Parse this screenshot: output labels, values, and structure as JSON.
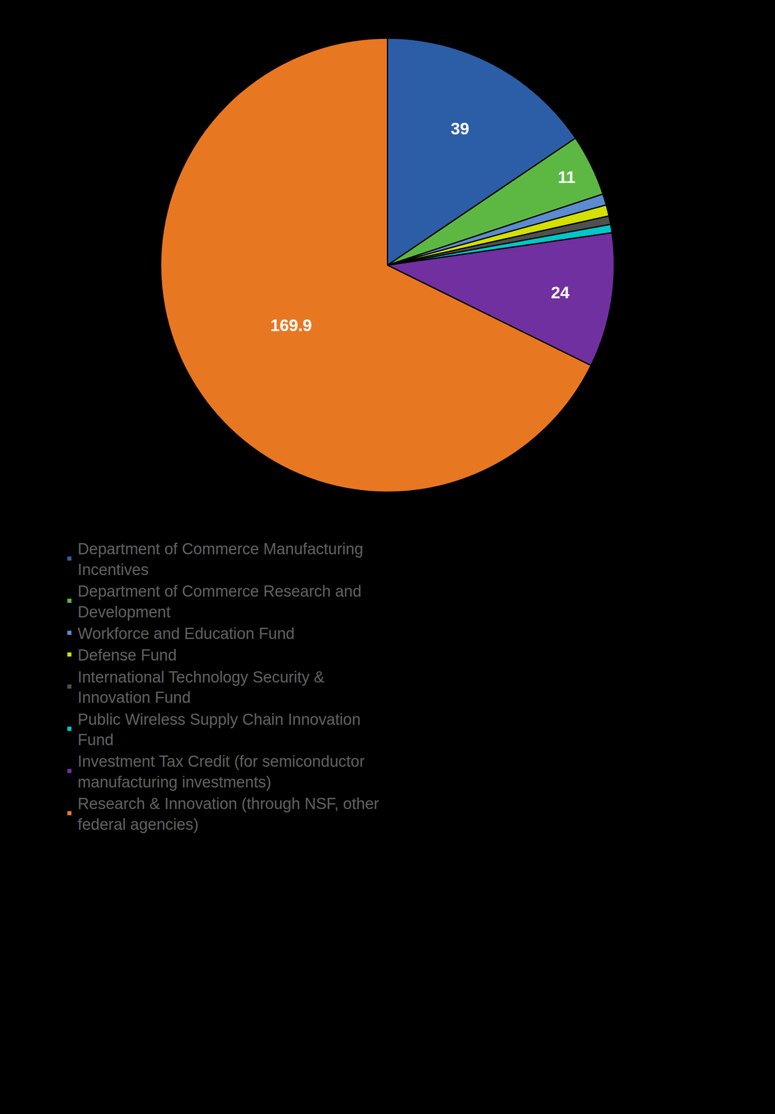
{
  "chart_data": {
    "type": "pie",
    "categories": [
      "Department of Commerce Manufacturing\nIncentives",
      "Department of Commerce Research and\nDevelopment",
      "Workforce and Education Fund",
      "Defense Fund",
      "International Technology Security &\nInnovation Fund",
      "Public Wireless Supply Chain Innovation\nFund",
      "Investment Tax Credit (for semiconductor\nmanufacturing investments)",
      "Research & Innovation (through NSF, other\nfederal agencies)"
    ],
    "values": [
      39,
      11,
      2,
      2,
      1.5,
      1.5,
      24,
      169.9
    ],
    "colors": [
      "#2B5EA7",
      "#5DB843",
      "#5B8BD0",
      "#D4E000",
      "#505050",
      "#00C8C8",
      "#7030A0",
      "#E87722"
    ],
    "value_labels": [
      "39",
      "11",
      null,
      null,
      null,
      null,
      "24",
      "169.9"
    ],
    "data_labels": true,
    "legend": "bottom"
  }
}
